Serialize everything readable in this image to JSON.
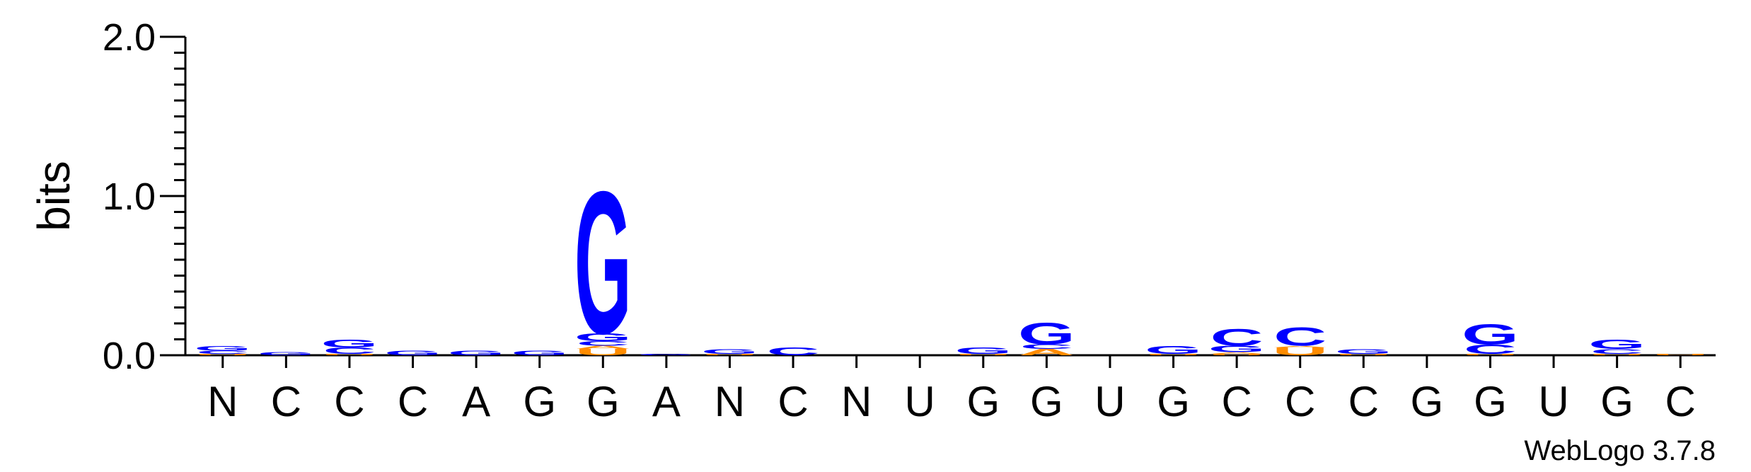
{
  "chart_data": {
    "type": "sequence-logo",
    "ylabel": "bits",
    "ylim": [
      0,
      2.0
    ],
    "yticks": [
      "0.0",
      "1.0",
      "2.0"
    ],
    "positions": [
      "N",
      "C",
      "C",
      "C",
      "A",
      "G",
      "G",
      "A",
      "N",
      "C",
      "N",
      "U",
      "G",
      "G",
      "U",
      "G",
      "C",
      "C",
      "C",
      "G",
      "G",
      "U",
      "G",
      "C"
    ],
    "stacks": [
      [
        {
          "letter": "U",
          "bits": 0.01
        },
        {
          "letter": "C",
          "bits": 0.02
        },
        {
          "letter": "G",
          "bits": 0.03
        }
      ],
      [
        {
          "letter": "G",
          "bits": 0.02
        }
      ],
      [
        {
          "letter": "U",
          "bits": 0.01
        },
        {
          "letter": "C",
          "bits": 0.04
        },
        {
          "letter": "G",
          "bits": 0.05
        }
      ],
      [
        {
          "letter": "G",
          "bits": 0.03
        }
      ],
      [
        {
          "letter": "G",
          "bits": 0.03
        }
      ],
      [
        {
          "letter": "G",
          "bits": 0.03
        }
      ],
      [
        {
          "letter": "U",
          "bits": 0.04
        },
        {
          "letter": "A",
          "bits": 0.02
        },
        {
          "letter": "C",
          "bits": 0.03
        },
        {
          "letter": "G",
          "bits": 0.05
        },
        {
          "letter": "G",
          "bits": 0.92
        }
      ],
      [
        {
          "letter": "G",
          "bits": 0.01
        }
      ],
      [
        {
          "letter": "U",
          "bits": 0.01
        },
        {
          "letter": "G",
          "bits": 0.03
        }
      ],
      [
        {
          "letter": "C",
          "bits": 0.05
        }
      ],
      [],
      [],
      [
        {
          "letter": "U",
          "bits": 0.01
        },
        {
          "letter": "G",
          "bits": 0.04
        }
      ],
      [
        {
          "letter": "A",
          "bits": 0.04
        },
        {
          "letter": "C",
          "bits": 0.03
        },
        {
          "letter": "G",
          "bits": 0.14
        }
      ],
      [],
      [
        {
          "letter": "U",
          "bits": 0.01
        },
        {
          "letter": "G",
          "bits": 0.05
        }
      ],
      [
        {
          "letter": "U",
          "bits": 0.01
        },
        {
          "letter": "A",
          "bits": 0.01
        },
        {
          "letter": "G",
          "bits": 0.04
        },
        {
          "letter": "C",
          "bits": 0.11
        }
      ],
      [
        {
          "letter": "U",
          "bits": 0.05
        },
        {
          "letter": "A",
          "bits": 0.01
        },
        {
          "letter": "C",
          "bits": 0.12
        }
      ],
      [
        {
          "letter": "U",
          "bits": 0.01
        },
        {
          "letter": "G",
          "bits": 0.03
        }
      ],
      [],
      [
        {
          "letter": "U",
          "bits": 0.01
        },
        {
          "letter": "C",
          "bits": 0.06
        },
        {
          "letter": "G",
          "bits": 0.13
        }
      ],
      [],
      [
        {
          "letter": "U",
          "bits": 0.01
        },
        {
          "letter": "C",
          "bits": 0.03
        },
        {
          "letter": "G",
          "bits": 0.06
        }
      ],
      [
        {
          "letter": "U",
          "bits": 0.01
        }
      ]
    ],
    "colors": {
      "G": "#0000ff",
      "C": "#0000ff",
      "U": "#ff8c00",
      "A": "#ff8c00"
    },
    "credit": "WebLogo 3.7.8"
  }
}
